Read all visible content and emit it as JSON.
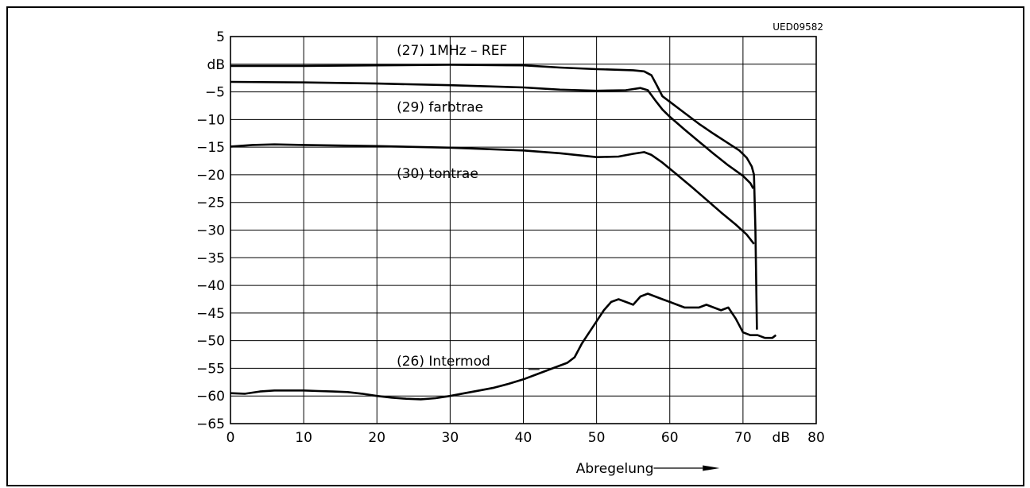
{
  "chart_data": {
    "type": "line",
    "figure_code": "UED09582",
    "xlabel": "Abregelung",
    "x_unit": "dB",
    "ylabel_unit": "dB",
    "xlim": [
      0,
      80
    ],
    "ylim": [
      -65,
      5
    ],
    "x_ticks": [
      0,
      10,
      20,
      30,
      40,
      50,
      60,
      70,
      80
    ],
    "y_ticks": [
      5,
      0,
      -5,
      -10,
      -15,
      -20,
      -25,
      -30,
      -35,
      -40,
      -45,
      -50,
      -55,
      -60,
      -65
    ],
    "x_tick_labels": [
      "0",
      "10",
      "20",
      "30",
      "40",
      "50",
      "60",
      "70",
      "80"
    ],
    "y_tick_labels": [
      "5",
      "dB",
      "-5",
      "-10",
      "-15",
      "-20",
      "-25",
      "-30",
      "-35",
      "-40",
      "-45",
      "-50",
      "-55",
      "-60",
      "-65"
    ],
    "grid": true,
    "series": [
      {
        "name": "(27) 1MHz - REF",
        "color": "#000000",
        "points": [
          [
            0,
            -0.3
          ],
          [
            10,
            -0.3
          ],
          [
            20,
            -0.2
          ],
          [
            30,
            -0.1
          ],
          [
            40,
            -0.2
          ],
          [
            45,
            -0.6
          ],
          [
            50,
            -0.9
          ],
          [
            55,
            -1.1
          ],
          [
            56.5,
            -1.3
          ],
          [
            57.5,
            -2.0
          ],
          [
            58.3,
            -4.0
          ],
          [
            59,
            -5.8
          ],
          [
            60,
            -6.8
          ],
          [
            62,
            -8.8
          ],
          [
            64,
            -10.8
          ],
          [
            66,
            -12.6
          ],
          [
            68,
            -14.3
          ],
          [
            69.5,
            -15.6
          ],
          [
            70.5,
            -16.9
          ],
          [
            71.2,
            -18.5
          ],
          [
            71.5,
            -20
          ],
          [
            71.7,
            -30
          ],
          [
            71.9,
            -48
          ]
        ]
      },
      {
        "name": "(29) farbtrae",
        "color": "#000000",
        "points": [
          [
            0,
            -3.2
          ],
          [
            10,
            -3.3
          ],
          [
            20,
            -3.5
          ],
          [
            30,
            -3.8
          ],
          [
            40,
            -4.2
          ],
          [
            45,
            -4.6
          ],
          [
            50,
            -4.8
          ],
          [
            54,
            -4.7
          ],
          [
            56,
            -4.3
          ],
          [
            57,
            -4.7
          ],
          [
            58,
            -6.5
          ],
          [
            59,
            -8.2
          ],
          [
            60,
            -9.5
          ],
          [
            62,
            -11.8
          ],
          [
            64,
            -14.0
          ],
          [
            66,
            -16.2
          ],
          [
            68,
            -18.3
          ],
          [
            70,
            -20.2
          ],
          [
            71,
            -21.5
          ],
          [
            71.4,
            -22.5
          ]
        ]
      },
      {
        "name": "(30) tontrae",
        "color": "#000000",
        "points": [
          [
            0,
            -14.9
          ],
          [
            3,
            -14.6
          ],
          [
            6,
            -14.5
          ],
          [
            10,
            -14.6
          ],
          [
            20,
            -14.8
          ],
          [
            30,
            -15.1
          ],
          [
            40,
            -15.6
          ],
          [
            45,
            -16.1
          ],
          [
            50,
            -16.8
          ],
          [
            53,
            -16.7
          ],
          [
            55,
            -16.2
          ],
          [
            56.5,
            -15.9
          ],
          [
            57.5,
            -16.4
          ],
          [
            59,
            -17.8
          ],
          [
            61,
            -20.0
          ],
          [
            63,
            -22.2
          ],
          [
            65,
            -24.5
          ],
          [
            67,
            -26.8
          ],
          [
            69,
            -29.0
          ],
          [
            70.5,
            -30.8
          ],
          [
            71.5,
            -32.5
          ]
        ]
      },
      {
        "name": "(26) Intermod",
        "color": "#000000",
        "points": [
          [
            0,
            -59.5
          ],
          [
            2,
            -59.6
          ],
          [
            4,
            -59.2
          ],
          [
            6,
            -59.0
          ],
          [
            8,
            -59.0
          ],
          [
            10,
            -59.0
          ],
          [
            12,
            -59.1
          ],
          [
            14,
            -59.2
          ],
          [
            16,
            -59.3
          ],
          [
            18,
            -59.6
          ],
          [
            20,
            -60.0
          ],
          [
            22,
            -60.3
          ],
          [
            24,
            -60.5
          ],
          [
            26,
            -60.6
          ],
          [
            28,
            -60.4
          ],
          [
            30,
            -60.0
          ],
          [
            32,
            -59.5
          ],
          [
            34,
            -59.0
          ],
          [
            36,
            -58.5
          ],
          [
            38,
            -57.8
          ],
          [
            40,
            -57.0
          ],
          [
            42,
            -56.0
          ],
          [
            44,
            -55.0
          ],
          [
            46,
            -54.0
          ],
          [
            47,
            -53.0
          ],
          [
            48,
            -50.5
          ],
          [
            49,
            -48.5
          ],
          [
            50,
            -46.5
          ],
          [
            51,
            -44.5
          ],
          [
            52,
            -43.0
          ],
          [
            53,
            -42.5
          ],
          [
            54,
            -43.0
          ],
          [
            55,
            -43.5
          ],
          [
            56,
            -42.0
          ],
          [
            57,
            -41.5
          ],
          [
            58,
            -42.0
          ],
          [
            59,
            -42.5
          ],
          [
            60,
            -43.0
          ],
          [
            61,
            -43.5
          ],
          [
            62,
            -44.0
          ],
          [
            63,
            -44.0
          ],
          [
            64,
            -44.0
          ],
          [
            65,
            -43.5
          ],
          [
            66,
            -44.0
          ],
          [
            67,
            -44.5
          ],
          [
            68,
            -44.0
          ],
          [
            69,
            -46.0
          ],
          [
            70,
            -48.5
          ],
          [
            71,
            -49.0
          ],
          [
            72,
            -49.0
          ],
          [
            73,
            -49.5
          ],
          [
            74,
            -49.5
          ],
          [
            74.5,
            -49.0
          ]
        ]
      }
    ],
    "annotations": [
      {
        "text": "(27) 1MHz - REF",
        "series": "(27) 1MHz - REF"
      },
      {
        "text": "(29) farbtrae",
        "series": "(29) farbtrae"
      },
      {
        "text": "(30) tontrae",
        "series": "(30) tontrae"
      },
      {
        "text": "(26) Intermod",
        "series": "(26) Intermod"
      }
    ]
  }
}
